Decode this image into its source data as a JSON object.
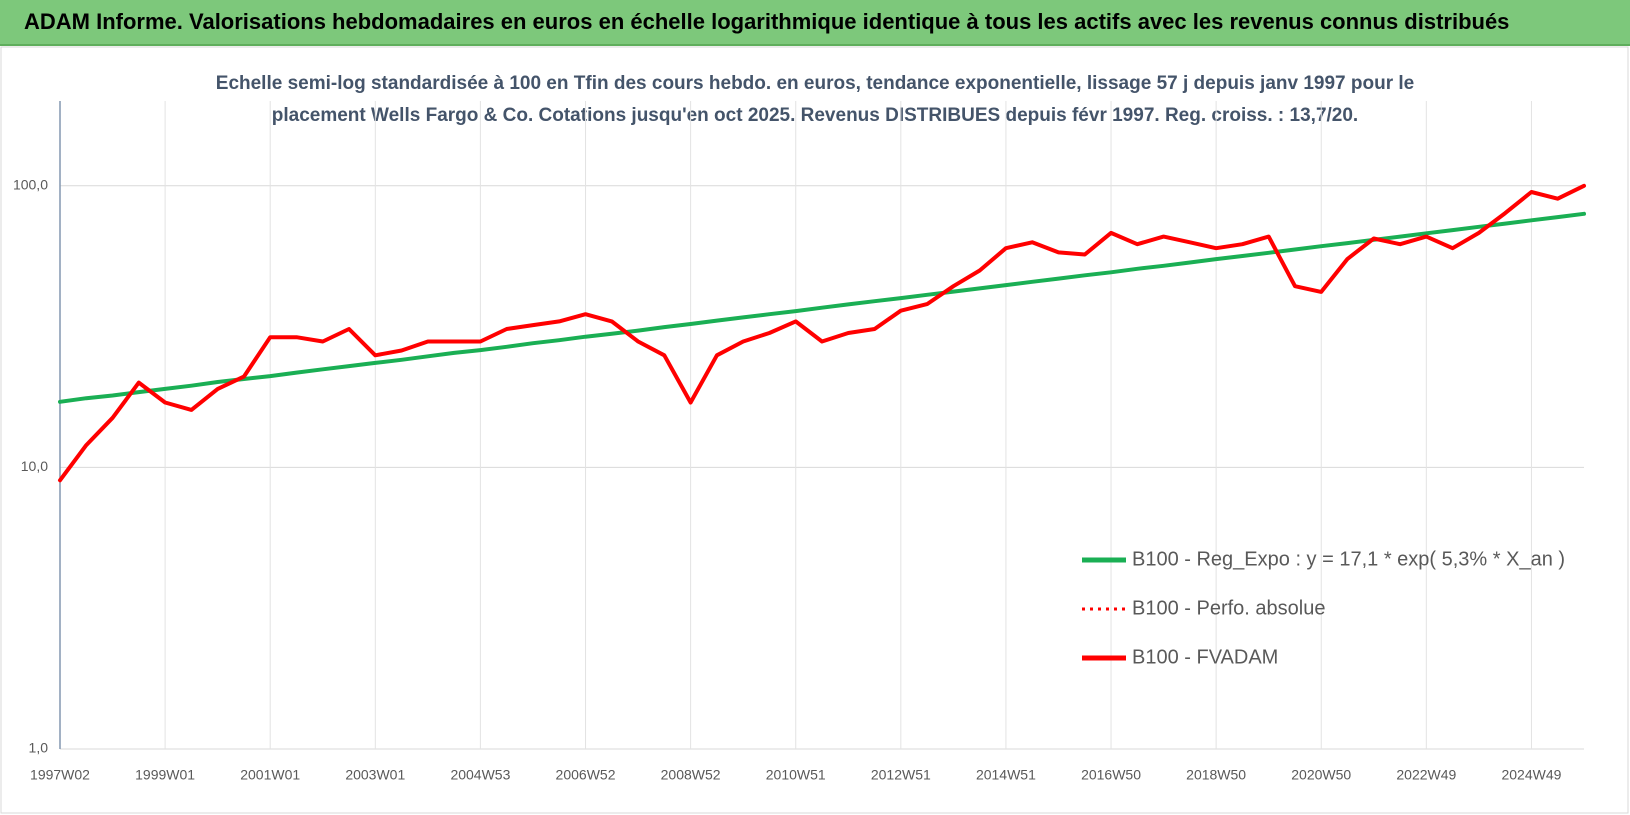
{
  "chart_data": {
    "type": "line",
    "title": "ADAM Informe. Valorisations hebdomadaires en euros en échelle logarithmique identique à tous les actifs avec les revenus connus distribués",
    "subtitle": [
      "Echelle semi-log standardisée à 100 en Tfin des cours hebdo. en euros, tendance exponentielle, lissage 57 j depuis janv 1997 pour le",
      "placement Wells Fargo & Co. Cotations jusqu'en oct 2025.  Revenus DISTRIBUES depuis févr 1997.  Reg. croiss. : 13,7/20."
    ],
    "categories": [
      "1997W02",
      null,
      null,
      null,
      "1999W01",
      null,
      null,
      null,
      "2001W01",
      null,
      null,
      null,
      "2003W01",
      null,
      null,
      null,
      "2004W53",
      null,
      null,
      null,
      "2006W52",
      null,
      null,
      null,
      "2008W52",
      null,
      null,
      null,
      "2010W51",
      null,
      null,
      null,
      "2012W51",
      null,
      null,
      null,
      "2014W51",
      null,
      null,
      null,
      "2016W50",
      null,
      null,
      null,
      "2018W50",
      null,
      null,
      null,
      "2020W50",
      null,
      null,
      null,
      "2022W49",
      null,
      null,
      null,
      "2024W49",
      null,
      null
    ],
    "log_scale": true,
    "ylim": [
      1,
      200
    ],
    "yticks": [
      {
        "value": 1,
        "label": "1,0"
      },
      {
        "value": 10,
        "label": "10,0"
      },
      {
        "value": 100,
        "label": "100,0"
      }
    ],
    "grid": true,
    "legend": "right",
    "series": [
      {
        "name": "B100 - Reg_Expo : y = 17,1 * exp( 5,3% *  X_an )",
        "color": "#1aaf54",
        "style": "solid",
        "values": [
          17.1,
          17.6,
          18.0,
          18.5,
          19.0,
          19.5,
          20.1,
          20.6,
          21.1,
          21.7,
          22.3,
          22.9,
          23.5,
          24.1,
          24.8,
          25.5,
          26.1,
          26.8,
          27.6,
          28.3,
          29.1,
          29.8,
          30.6,
          31.5,
          32.3,
          33.2,
          34.1,
          35.0,
          35.9,
          36.9,
          37.9,
          38.9,
          39.9,
          41.0,
          42.1,
          43.2,
          44.4,
          45.6,
          46.8,
          48.1,
          49.3,
          50.7,
          52.0,
          53.4,
          54.9,
          56.3,
          57.8,
          59.4,
          61.0,
          62.6,
          64.3,
          66.0,
          67.8,
          69.6,
          71.5,
          73.4,
          75.4,
          77.4,
          79.5
        ]
      },
      {
        "name": "B100 - Perfo. absolue",
        "color": "#ff0000",
        "style": "dotted",
        "values": [
          9,
          12,
          15,
          20,
          17,
          16,
          19,
          21,
          29,
          29,
          28,
          31,
          25,
          26,
          28,
          28,
          28,
          31,
          32,
          33,
          35,
          33,
          28,
          25,
          17,
          25,
          28,
          30,
          33,
          28,
          30,
          31,
          36,
          38,
          44,
          50,
          60,
          63,
          58,
          57,
          68,
          62,
          66,
          63,
          60,
          62,
          66,
          44,
          42,
          55,
          65,
          62,
          66,
          60,
          68,
          80,
          95,
          90,
          100
        ]
      },
      {
        "name": "B100 - FVADAM",
        "color": "#ff0000",
        "style": "solid",
        "values": [
          9,
          12,
          15,
          20,
          17,
          16,
          19,
          21,
          29,
          29,
          28,
          31,
          25,
          26,
          28,
          28,
          28,
          31,
          32,
          33,
          35,
          33,
          28,
          25,
          17,
          25,
          28,
          30,
          33,
          28,
          30,
          31,
          36,
          38,
          44,
          50,
          60,
          63,
          58,
          57,
          68,
          62,
          66,
          63,
          60,
          62,
          66,
          44,
          42,
          55,
          65,
          62,
          66,
          60,
          68,
          80,
          95,
          90,
          100
        ]
      }
    ]
  }
}
